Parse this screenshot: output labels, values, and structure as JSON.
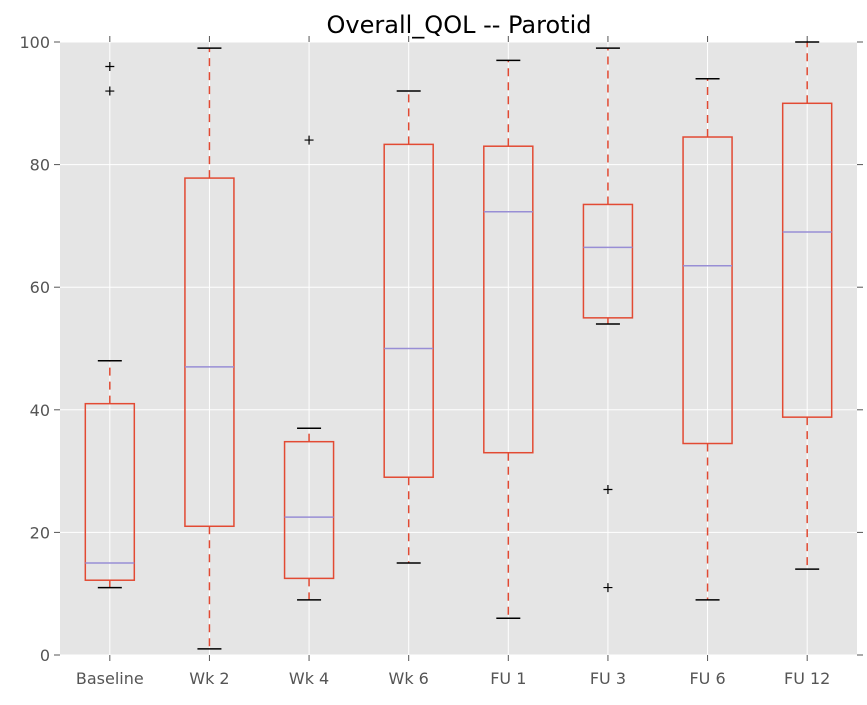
{
  "chart_data": {
    "type": "box",
    "title": "Overall_QOL -- Parotid",
    "xlabel": "",
    "ylabel": "",
    "ylim": [
      0,
      100
    ],
    "yticks": [
      0,
      20,
      40,
      60,
      80,
      100
    ],
    "grid": true,
    "categories": [
      "Baseline",
      "Wk 2",
      "Wk 4",
      "Wk 6",
      "FU 1",
      "FU 3",
      "FU 6",
      "FU 12"
    ],
    "boxes": [
      {
        "whisker_low": 11,
        "q1": 12.2,
        "median": 15,
        "q3": 41,
        "whisker_high": 48,
        "outliers": [
          92,
          96
        ]
      },
      {
        "whisker_low": 1,
        "q1": 21,
        "median": 47,
        "q3": 77.8,
        "whisker_high": 99,
        "outliers": []
      },
      {
        "whisker_low": 9,
        "q1": 12.5,
        "median": 22.5,
        "q3": 34.8,
        "whisker_high": 37,
        "outliers": [
          84
        ]
      },
      {
        "whisker_low": 15,
        "q1": 29,
        "median": 50,
        "q3": 83.3,
        "whisker_high": 92,
        "outliers": []
      },
      {
        "whisker_low": 6,
        "q1": 33,
        "median": 72.3,
        "q3": 83,
        "whisker_high": 97,
        "outliers": []
      },
      {
        "whisker_low": 54,
        "q1": 55,
        "median": 66.5,
        "q3": 73.5,
        "whisker_high": 99,
        "outliers": [
          11,
          27
        ]
      },
      {
        "whisker_low": 9,
        "q1": 34.5,
        "median": 63.5,
        "q3": 84.5,
        "whisker_high": 94,
        "outliers": []
      },
      {
        "whisker_low": 14,
        "q1": 38.8,
        "median": 69,
        "q3": 90,
        "whisker_high": 100,
        "outliers": []
      }
    ],
    "colors": {
      "plot_background": "#e5e5e5",
      "grid": "#ffffff",
      "box": "#e24a33",
      "whisker": "#e24a33",
      "median": "#988ed5",
      "cap": "#000000",
      "outlier": "#000000"
    }
  }
}
